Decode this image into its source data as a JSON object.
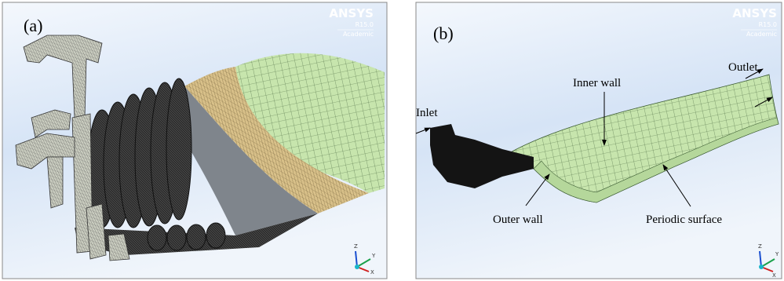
{
  "panels": [
    {
      "label": "(a)",
      "logo": {
        "brand": "ANSYS",
        "version": "R15.0",
        "edition": "Academic"
      },
      "triad": [
        "Z",
        "Y",
        "X"
      ]
    },
    {
      "label": "(b)",
      "logo": {
        "brand": "ANSYS",
        "version": "R15.0",
        "edition": "Academic"
      },
      "triad": [
        "Z",
        "Y",
        "X"
      ],
      "annotations": [
        "Inlet",
        "Inner wall",
        "Outlet",
        "Outer wall",
        "Periodic surface"
      ]
    }
  ]
}
